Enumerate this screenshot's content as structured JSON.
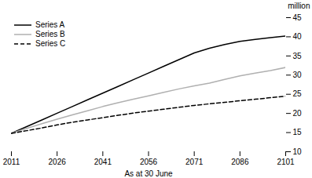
{
  "chart_data": {
    "type": "line",
    "xlabel": "As at 30 June",
    "ylabel": "million",
    "x": [
      2011,
      2016,
      2021,
      2026,
      2031,
      2036,
      2041,
      2046,
      2051,
      2056,
      2061,
      2066,
      2071,
      2076,
      2081,
      2086,
      2091,
      2096,
      2101
    ],
    "series": [
      {
        "name": "Series A",
        "color": "#000000",
        "line_style": "solid",
        "values": [
          14.8,
          16.55,
          18.3,
          20.05,
          21.8,
          23.55,
          25.3,
          27.05,
          28.8,
          30.55,
          32.3,
          34.05,
          35.8,
          37.0,
          38.0,
          38.8,
          39.3,
          39.8,
          40.2
        ]
      },
      {
        "name": "Series B",
        "color": "#b0b0b0",
        "line_style": "solid",
        "values": [
          14.8,
          16.1,
          17.3,
          18.5,
          19.6,
          20.7,
          21.8,
          22.8,
          23.7,
          24.6,
          25.5,
          26.4,
          27.2,
          27.9,
          28.9,
          29.8,
          30.5,
          31.2,
          32.0
        ]
      },
      {
        "name": "Series C",
        "color": "#000000",
        "line_style": "dashed",
        "values": [
          14.8,
          15.5,
          16.2,
          17.0,
          17.7,
          18.3,
          18.9,
          19.5,
          20.1,
          20.6,
          21.1,
          21.6,
          22.1,
          22.5,
          22.9,
          23.3,
          23.7,
          24.1,
          24.5
        ]
      }
    ],
    "xlim": [
      2011,
      2101
    ],
    "xticks": [
      2011,
      2026,
      2041,
      2056,
      2071,
      2086,
      2101
    ],
    "ylim": [
      10,
      45
    ],
    "yticks": [
      10,
      15,
      20,
      25,
      30,
      35,
      40,
      45
    ],
    "legend": "upper left",
    "grid": false
  }
}
